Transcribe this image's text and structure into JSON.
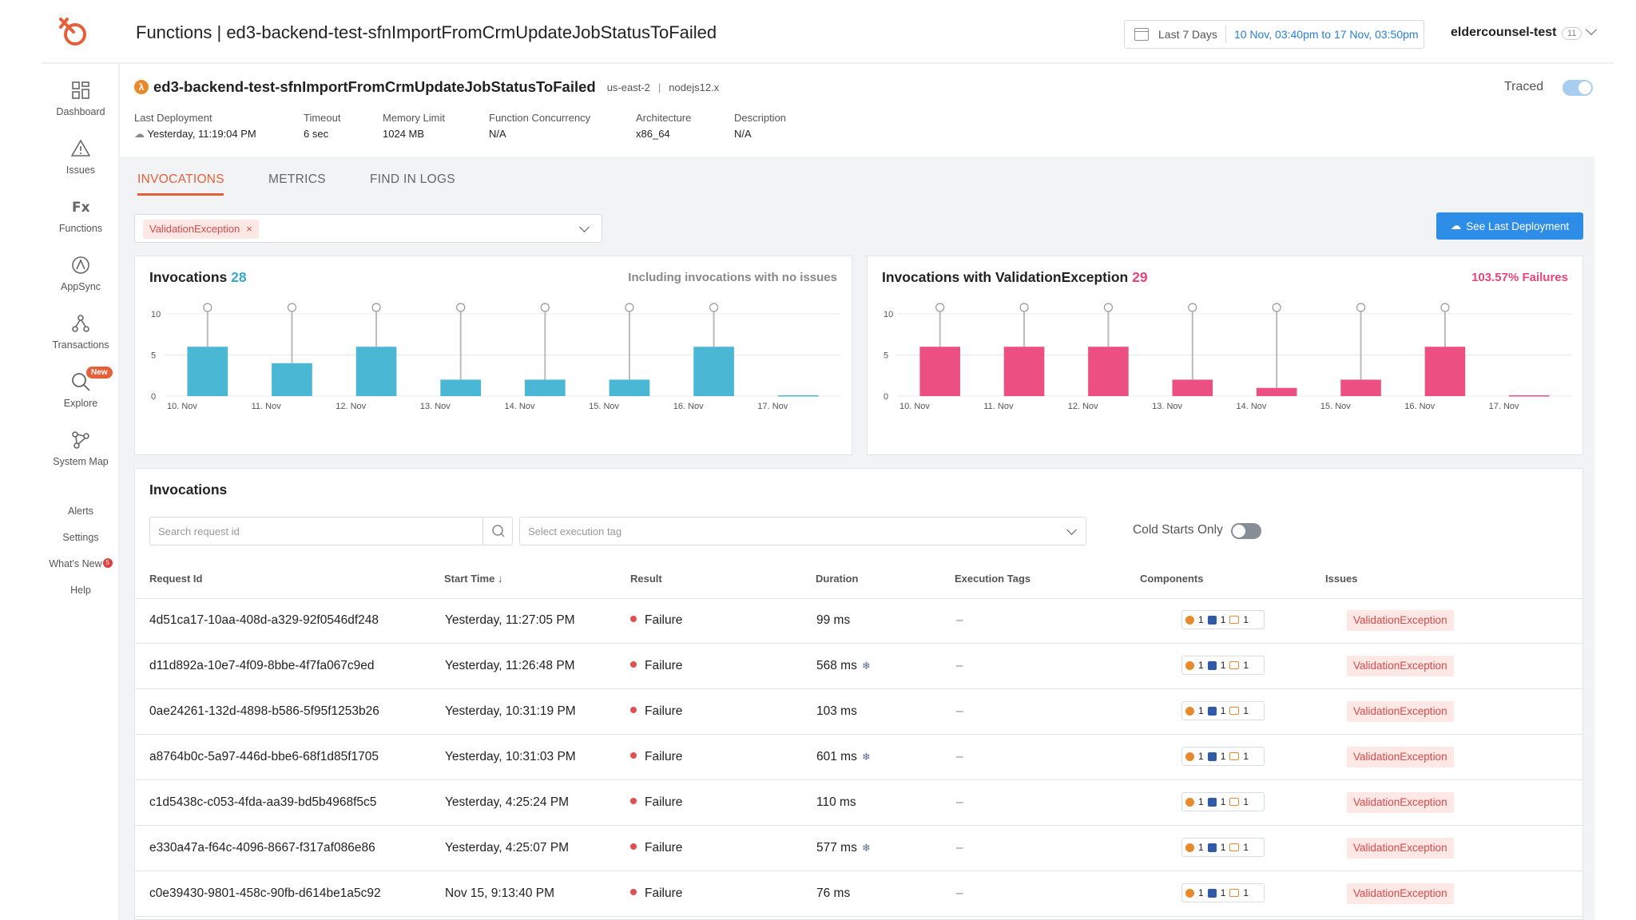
{
  "header": {
    "page_title": "Functions | ed3-backend-test-sfnImportFromCrmUpdateJobStatusToFailed",
    "date_preset": "Last 7 Days",
    "date_range": "10 Nov, 03:40pm to 17 Nov, 03:50pm",
    "account": "eldercounsel-test",
    "account_count": "11"
  },
  "sidebar": {
    "items": [
      {
        "label": "Dashboard",
        "icon": "dashboard-icon"
      },
      {
        "label": "Issues",
        "icon": "warning-icon"
      },
      {
        "label": "Functions",
        "icon": "fx-icon"
      },
      {
        "label": "AppSync",
        "icon": "appsync-icon"
      },
      {
        "label": "Transactions",
        "icon": "transactions-icon"
      },
      {
        "label": "Explore",
        "icon": "search-icon",
        "badge": "New"
      },
      {
        "label": "System Map",
        "icon": "system-map-icon"
      }
    ],
    "links": [
      {
        "label": "Alerts"
      },
      {
        "label": "Settings"
      },
      {
        "label": "What's New",
        "badge": "5"
      },
      {
        "label": "Help"
      }
    ]
  },
  "function": {
    "name": "ed3-backend-test-sfnImportFromCrmUpdateJobStatusToFailed",
    "region": "us-east-2",
    "separator": "|",
    "runtime": "nodejs12.x",
    "traced_label": "Traced",
    "traced": true,
    "meta": [
      {
        "key": "Last Deployment",
        "value": "Yesterday, 11:19:04 PM"
      },
      {
        "key": "Timeout",
        "value": "6 sec"
      },
      {
        "key": "Memory Limit",
        "value": "1024 MB"
      },
      {
        "key": "Function Concurrency",
        "value": "N/A"
      },
      {
        "key": "Architecture",
        "value": "x86_64"
      },
      {
        "key": "Description",
        "value": "N/A"
      }
    ]
  },
  "tabs": [
    {
      "label": "INVOCATIONS",
      "active": true
    },
    {
      "label": "METRICS",
      "active": false
    },
    {
      "label": "FIND IN LOGS",
      "active": false
    }
  ],
  "filter": {
    "chip": "ValidationException",
    "chip_close": "×"
  },
  "deploy_button": "See Last Deployment",
  "charts": [
    {
      "title": "Invocations",
      "count": "28",
      "note": "Including invocations with no issues",
      "color": "#4ab8d4"
    },
    {
      "title": "Invocations with ValidationException",
      "count": "29",
      "note": "103.57% Failures",
      "color": "#ec4f82"
    }
  ],
  "chart_data": [
    {
      "type": "bar",
      "title": "Invocations 28",
      "categories": [
        "10. Nov",
        "11. Nov",
        "12. Nov",
        "13. Nov",
        "14. Nov",
        "15. Nov",
        "16. Nov",
        "17. Nov"
      ],
      "values": [
        6,
        4,
        6,
        2,
        2,
        2,
        6,
        0
      ],
      "deployment_markers": [
        "10. Nov",
        "11. Nov",
        "12. Nov",
        "13. Nov",
        "14. Nov",
        "15. Nov",
        "16. Nov"
      ],
      "yticks": [
        0,
        5,
        10
      ],
      "ylim": [
        0,
        10
      ],
      "grid": true
    },
    {
      "type": "bar",
      "title": "Invocations with ValidationException 29",
      "categories": [
        "10. Nov",
        "11. Nov",
        "12. Nov",
        "13. Nov",
        "14. Nov",
        "15. Nov",
        "16. Nov",
        "17. Nov"
      ],
      "values": [
        6,
        6,
        6,
        2,
        1,
        2,
        6,
        0
      ],
      "deployment_markers": [
        "10. Nov",
        "11. Nov",
        "12. Nov",
        "13. Nov",
        "14. Nov",
        "15. Nov",
        "16. Nov"
      ],
      "yticks": [
        0,
        5,
        10
      ],
      "ylim": [
        0,
        10
      ],
      "grid": true
    }
  ],
  "invocations": {
    "title": "Invocations",
    "search_placeholder": "Search request id",
    "tag_placeholder": "Select execution tag",
    "cold_starts_label": "Cold Starts Only",
    "cold_starts_on": false,
    "columns": [
      "Request Id",
      "Start Time ↓",
      "Result",
      "Duration",
      "Execution Tags",
      "Components",
      "Issues"
    ],
    "rows": [
      {
        "id": "4d51ca17-10aa-408d-a329-92f0546df248",
        "start": "Yesterday, 11:27:05 PM",
        "result": "Failure",
        "duration": "99 ms",
        "cold": false,
        "tags": "–",
        "comp": [
          "1",
          "1",
          "1"
        ],
        "issue": "ValidationException"
      },
      {
        "id": "d11d892a-10e7-4f09-8bbe-4f7fa067c9ed",
        "start": "Yesterday, 11:26:48 PM",
        "result": "Failure",
        "duration": "568 ms",
        "cold": true,
        "tags": "–",
        "comp": [
          "1",
          "1",
          "1"
        ],
        "issue": "ValidationException"
      },
      {
        "id": "0ae24261-132d-4898-b586-5f95f1253b26",
        "start": "Yesterday, 10:31:19 PM",
        "result": "Failure",
        "duration": "103 ms",
        "cold": false,
        "tags": "–",
        "comp": [
          "1",
          "1",
          "1"
        ],
        "issue": "ValidationException"
      },
      {
        "id": "a8764b0c-5a97-446d-bbe6-68f1d85f1705",
        "start": "Yesterday, 10:31:03 PM",
        "result": "Failure",
        "duration": "601 ms",
        "cold": true,
        "tags": "–",
        "comp": [
          "1",
          "1",
          "1"
        ],
        "issue": "ValidationException"
      },
      {
        "id": "c1d5438c-c053-4fda-aa39-bd5b4968f5c5",
        "start": "Yesterday, 4:25:24 PM",
        "result": "Failure",
        "duration": "110 ms",
        "cold": false,
        "tags": "–",
        "comp": [
          "1",
          "1",
          "1"
        ],
        "issue": "ValidationException"
      },
      {
        "id": "e330a47a-f64c-4096-8667-f317af086e86",
        "start": "Yesterday, 4:25:07 PM",
        "result": "Failure",
        "duration": "577 ms",
        "cold": true,
        "tags": "–",
        "comp": [
          "1",
          "1",
          "1"
        ],
        "issue": "ValidationException"
      },
      {
        "id": "c0e39430-9801-458c-90fb-d614be1a5c92",
        "start": "Nov 15, 9:13:40 PM",
        "result": "Failure",
        "duration": "76 ms",
        "cold": false,
        "tags": "–",
        "comp": [
          "1",
          "1",
          "1"
        ],
        "issue": "ValidationException"
      }
    ]
  },
  "colors": {
    "accent": "#e5603a",
    "link": "#2a7fd4",
    "button": "#2e8de6",
    "bar_blue": "#4ab8d4",
    "bar_pink": "#ec4f82",
    "failure": "#e05050"
  }
}
